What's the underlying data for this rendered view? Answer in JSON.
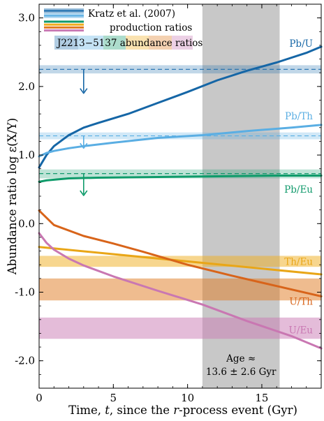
{
  "chart_data": {
    "type": "line",
    "title": "",
    "xlabel": "Time, t, since the r-process event (Gyr)",
    "ylabel": "Abundance ratio log ε(X/Y)",
    "xlim": [
      0,
      19
    ],
    "ylim": [
      -2.4,
      3.2
    ],
    "x_ticks": [
      0,
      5,
      10,
      15
    ],
    "y_ticks": [
      3.0,
      2.0,
      1.0,
      0.0,
      -1.0,
      -2.0
    ],
    "y_tick_labels": [
      "3.0",
      "2.0",
      "1.0",
      "0.0",
      "-1.0",
      "-2.0"
    ],
    "age_band": {
      "from": 11.0,
      "to": 16.2,
      "label_line1": "Age ≈",
      "label_line2": "13.6 ± 2.6 Gyr"
    },
    "legend": {
      "kratz": "Kratz et al. (2007)",
      "production": "production ratios",
      "star": "J2213−5137 abundance ratios",
      "swatch_colors": [
        "#1f6fae",
        "#5aaee3",
        "#119a6c",
        "#f0ad1e",
        "#e07a20",
        "#c979b4"
      ]
    },
    "series": [
      {
        "name": "Pb/U",
        "color": "#1566a6",
        "x": [
          0,
          0.5,
          1,
          2,
          3,
          4,
          6,
          8,
          10,
          12,
          14,
          16,
          18,
          19
        ],
        "y": [
          0.82,
          1.0,
          1.13,
          1.29,
          1.4,
          1.47,
          1.6,
          1.76,
          1.92,
          2.09,
          2.23,
          2.35,
          2.49,
          2.58
        ]
      },
      {
        "name": "Pb/Th",
        "color": "#5aaee3",
        "x": [
          0,
          0.5,
          1,
          2,
          3,
          5,
          8,
          11,
          14,
          17,
          19
        ],
        "y": [
          0.98,
          1.03,
          1.06,
          1.1,
          1.13,
          1.18,
          1.25,
          1.29,
          1.35,
          1.4,
          1.44
        ]
      },
      {
        "name": "Pb/Eu",
        "color": "#0e9b6a",
        "x": [
          0,
          0.5,
          1,
          2,
          4,
          8,
          12,
          16,
          19
        ],
        "y": [
          0.61,
          0.63,
          0.64,
          0.66,
          0.67,
          0.68,
          0.69,
          0.7,
          0.7
        ]
      },
      {
        "name": "Th/Eu",
        "color": "#e9a617",
        "x": [
          0,
          19
        ],
        "y": [
          -0.34,
          -0.74
        ]
      },
      {
        "name": "U/Th",
        "color": "#d8641a",
        "x": [
          0,
          1,
          3,
          5,
          7,
          10,
          13,
          16,
          19
        ],
        "y": [
          0.19,
          -0.02,
          -0.18,
          -0.29,
          -0.41,
          -0.6,
          -0.76,
          -0.91,
          -1.06
        ]
      },
      {
        "name": "U/Eu",
        "color": "#c977b2",
        "x": [
          0,
          0.5,
          1,
          2,
          3,
          5,
          8,
          11,
          14,
          17,
          19
        ],
        "y": [
          -0.14,
          -0.28,
          -0.38,
          -0.51,
          -0.61,
          -0.77,
          -0.98,
          -1.18,
          -1.42,
          -1.64,
          -1.82
        ]
      }
    ],
    "kratz_ratios": [
      {
        "name": "Pb/U",
        "value": 2.25,
        "upper": 2.31,
        "lower": 2.19,
        "color": "#1f6fae"
      },
      {
        "name": "Pb/Th",
        "value": 1.28,
        "upper": 1.33,
        "lower": 1.23,
        "color": "#5aaee3"
      },
      {
        "name": "Pb/Eu",
        "value": 0.73,
        "upper": 0.79,
        "lower": 0.66,
        "color": "#119a6c"
      }
    ],
    "star_upper_limits": [
      {
        "name": "Pb/U",
        "x": 3,
        "from": 2.25,
        "to": 1.9,
        "color": "#1566a6"
      },
      {
        "name": "Pb/Th",
        "x": 3,
        "from": 1.28,
        "to": 1.1,
        "color": "#5aaee3"
      },
      {
        "name": "Pb/Eu",
        "x": 3,
        "from": 0.73,
        "to": 0.41,
        "color": "#0e9b6a"
      }
    ],
    "star_bands": [
      {
        "name": "Th/Eu",
        "upper": -0.47,
        "lower": -0.63,
        "color": "#f0ad1e"
      },
      {
        "name": "U/Th",
        "upper": -0.8,
        "lower": -1.12,
        "color": "#e07a20"
      },
      {
        "name": "U/Eu",
        "upper": -1.37,
        "lower": -1.68,
        "color": "#c979b4"
      }
    ],
    "series_labels": [
      {
        "text": "Pb/U",
        "color": "#1566a6",
        "y": 2.63
      },
      {
        "text": "Pb/Th",
        "color": "#5aaee3",
        "y": 1.57
      },
      {
        "text": "Pb/Eu",
        "color": "#119a6c",
        "y": 0.5
      },
      {
        "text": "Th/Eu",
        "color": "#e9a617",
        "y": -0.55
      },
      {
        "text": "U/Th",
        "color": "#d8641a",
        "y": -1.13
      },
      {
        "text": "U/Eu",
        "color": "#c977b2",
        "y": -1.55
      }
    ]
  }
}
